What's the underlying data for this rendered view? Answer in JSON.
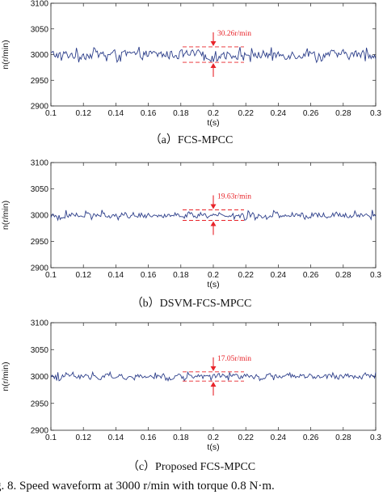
{
  "figure_caption": "g. 8.   Speed waveform at 3000 r/min with torque 0.8 N·m.",
  "colors": {
    "trace": "#2c3e8a",
    "annotation": "#e8242a",
    "axis": "#222222"
  },
  "chart_data": [
    {
      "type": "line",
      "caption": "（a）FCS-MPCC",
      "xlabel": "t(s)",
      "ylabel": "n(r/min)",
      "xlim": [
        0.1,
        0.3
      ],
      "ylim": [
        2900,
        3100
      ],
      "xticks": [
        0.1,
        0.12,
        0.14,
        0.16,
        0.18,
        0.2,
        0.22,
        0.24,
        0.26,
        0.28,
        0.3
      ],
      "xtick_labels": [
        "0.1",
        "0.12",
        "0.14",
        "0.16",
        "0.18",
        "0.2",
        "0.22",
        "0.24",
        "0.26",
        "0.28",
        "0.3"
      ],
      "yticks": [
        2900,
        2950,
        3000,
        3050,
        3100
      ],
      "ytick_labels": [
        "2900",
        "2950",
        "3000",
        "3050",
        "3100"
      ],
      "series": [
        {
          "mean": 3000,
          "ripple_peak_to_peak": 30.26
        }
      ],
      "annotation": {
        "text": "30.26r/min",
        "x": 0.2,
        "upper": 3015,
        "lower": 2985
      }
    },
    {
      "type": "line",
      "caption": "（b）DSVM-FCS-MPCC",
      "xlabel": "t(s)",
      "ylabel": "n(r/min)",
      "xlim": [
        0.1,
        0.3
      ],
      "ylim": [
        2900,
        3100
      ],
      "xticks": [
        0.1,
        0.12,
        0.14,
        0.16,
        0.18,
        0.2,
        0.22,
        0.24,
        0.26,
        0.28,
        0.3
      ],
      "xtick_labels": [
        "0.1",
        "0.12",
        "0.14",
        "0.16",
        "0.18",
        "0.2",
        "0.22",
        "0.24",
        "0.26",
        "0.28",
        "0.3"
      ],
      "yticks": [
        2900,
        2950,
        3000,
        3050,
        3100
      ],
      "ytick_labels": [
        "2900",
        "2950",
        "3000",
        "3050",
        "3100"
      ],
      "series": [
        {
          "mean": 3000,
          "ripple_peak_to_peak": 19.63
        }
      ],
      "annotation": {
        "text": "19.63r/min",
        "x": 0.2,
        "upper": 3010,
        "lower": 2990
      }
    },
    {
      "type": "line",
      "caption": "（c）Proposed FCS-MPCC",
      "xlabel": "t(s)",
      "ylabel": "n(r/min)",
      "xlim": [
        0.1,
        0.3
      ],
      "ylim": [
        2900,
        3100
      ],
      "xticks": [
        0.1,
        0.12,
        0.14,
        0.16,
        0.18,
        0.2,
        0.22,
        0.24,
        0.26,
        0.28,
        0.3
      ],
      "xtick_labels": [
        "0.1",
        "0.12",
        "0.14",
        "0.16",
        "0.18",
        "0.2",
        "0.22",
        "0.24",
        "0.26",
        "0.28",
        "0.3"
      ],
      "yticks": [
        2900,
        2950,
        3000,
        3050,
        3100
      ],
      "ytick_labels": [
        "2900",
        "2950",
        "3000",
        "3050",
        "3100"
      ],
      "series": [
        {
          "mean": 3000,
          "ripple_peak_to_peak": 17.05
        }
      ],
      "annotation": {
        "text": "17.05r/min",
        "x": 0.2,
        "upper": 3008.5,
        "lower": 2991.5
      }
    }
  ]
}
